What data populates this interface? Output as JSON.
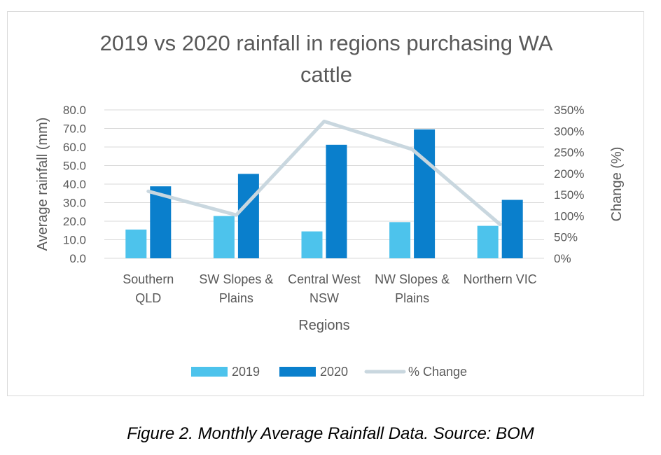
{
  "chart_data": {
    "type": "bar",
    "title_lines": [
      "2019 vs 2020 rainfall in regions purchasing WA",
      "cattle"
    ],
    "xlabel": "Regions",
    "ylabel": "Average rainfall (mm)",
    "y2label": "Change (%)",
    "categories": [
      [
        "Southern",
        "QLD"
      ],
      [
        "SW Slopes &",
        "Plains"
      ],
      [
        "Central West",
        "NSW"
      ],
      [
        "NW Slopes &",
        "Plains"
      ],
      [
        "Northern VIC"
      ]
    ],
    "ylim": [
      0,
      80
    ],
    "yticks": [
      "80.0",
      "70.0",
      "60.0",
      "50.0",
      "40.0",
      "30.0",
      "20.0",
      "10.0",
      "0.0"
    ],
    "y2lim": [
      0,
      350
    ],
    "y2ticks": [
      "350%",
      "300%",
      "250%",
      "200%",
      "150%",
      "100%",
      "50%",
      "0%"
    ],
    "series": [
      {
        "name": "2019",
        "kind": "bar",
        "axis": "left",
        "color": "#4dc3ec",
        "values": [
          15.5,
          22.8,
          14.5,
          19.5,
          17.5
        ]
      },
      {
        "name": "2020",
        "kind": "bar",
        "axis": "left",
        "color": "#0a7fcc",
        "values": [
          38.8,
          45.5,
          61.2,
          69.5,
          31.5
        ]
      },
      {
        "name": "% Change",
        "kind": "line",
        "axis": "right",
        "color": "#c9d7df",
        "values": [
          158,
          102,
          323,
          257,
          80
        ]
      }
    ],
    "grid": true,
    "legend_position": "bottom"
  },
  "caption": "Figure 2. Monthly Average Rainfall Data. Source: BOM"
}
